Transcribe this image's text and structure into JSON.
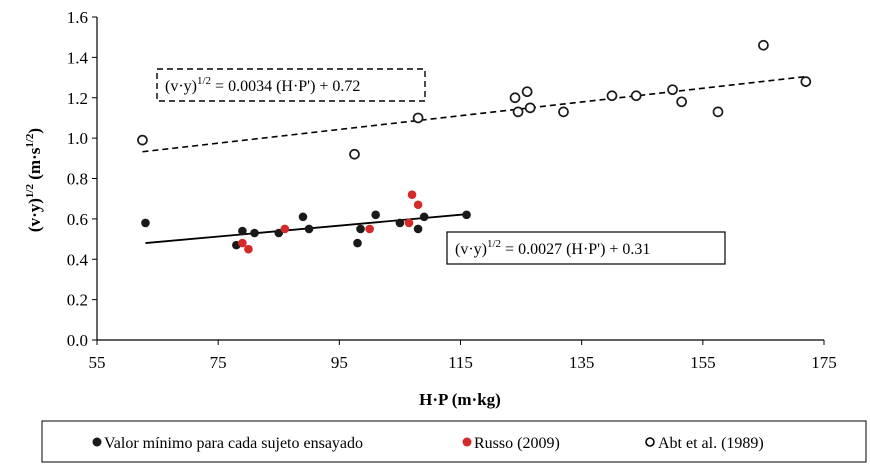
{
  "chart_data": {
    "type": "scatter",
    "xlabel": "H·P (m·kg)",
    "ylabel_base": "(v·y)",
    "ylabel_exp": "1/2",
    "ylabel_unit_base": " (m·s",
    "ylabel_unit_exp": "1/2",
    "ylabel_unit_close": ")",
    "xlim": [
      55,
      175
    ],
    "ylim": [
      0,
      1.6
    ],
    "x_ticks": [
      "55",
      "75",
      "95",
      "115",
      "135",
      "155",
      "175"
    ],
    "y_ticks": [
      "0.0",
      "0.2",
      "0.4",
      "0.6",
      "0.8",
      "1.0",
      "1.2",
      "1.4",
      "1.6"
    ],
    "grid": false,
    "legend_position": "bottom",
    "series": [
      {
        "name": "Valor mínimo para cada sujeto ensayado",
        "marker": "filled-circle",
        "color": "#1a1a1a",
        "points": [
          [
            63,
            0.58
          ],
          [
            78,
            0.47
          ],
          [
            79,
            0.54
          ],
          [
            81,
            0.53
          ],
          [
            85,
            0.53
          ],
          [
            89,
            0.61
          ],
          [
            90,
            0.55
          ],
          [
            98,
            0.48
          ],
          [
            98.5,
            0.55
          ],
          [
            101,
            0.62
          ],
          [
            105,
            0.58
          ],
          [
            108,
            0.55
          ],
          [
            109,
            0.61
          ],
          [
            116,
            0.62
          ]
        ]
      },
      {
        "name": "Russo (2009)",
        "marker": "filled-circle",
        "color": "#d42a2a",
        "points": [
          [
            79,
            0.48
          ],
          [
            80,
            0.45
          ],
          [
            86,
            0.55
          ],
          [
            100,
            0.55
          ],
          [
            106.5,
            0.58
          ],
          [
            107,
            0.72
          ],
          [
            108,
            0.67
          ]
        ]
      },
      {
        "name": "Abt et al. (1989)",
        "marker": "open-circle",
        "color": "#1a1a1a",
        "points": [
          [
            62.5,
            0.99
          ],
          [
            97.5,
            0.92
          ],
          [
            108,
            1.1
          ],
          [
            124,
            1.2
          ],
          [
            124.5,
            1.13
          ],
          [
            126,
            1.23
          ],
          [
            126.5,
            1.15
          ],
          [
            132,
            1.13
          ],
          [
            140,
            1.21
          ],
          [
            144,
            1.21
          ],
          [
            150,
            1.24
          ],
          [
            151.5,
            1.18
          ],
          [
            157.5,
            1.13
          ],
          [
            165,
            1.46
          ],
          [
            172,
            1.28
          ]
        ]
      }
    ],
    "trendlines": [
      {
        "series": "Abt et al. (1989)",
        "slope": 0.0034,
        "intercept": 0.72,
        "x_range": [
          62.5,
          172
        ],
        "style": "dashed",
        "label_prefix": "(v·y)",
        "label_exp": "1/2",
        "label_rest": " = 0.0034 (H·P') + 0.72",
        "label_box": "dashed"
      },
      {
        "series": "Valor mínimo para cada sujeto ensayado",
        "slope": 0.0027,
        "intercept": 0.31,
        "x_range": [
          63,
          116
        ],
        "style": "solid",
        "label_prefix": "(v·y)",
        "label_exp": "1/2",
        "label_rest": "  = 0.0027 (H·P')  + 0.31",
        "label_box": "solid"
      }
    ]
  }
}
